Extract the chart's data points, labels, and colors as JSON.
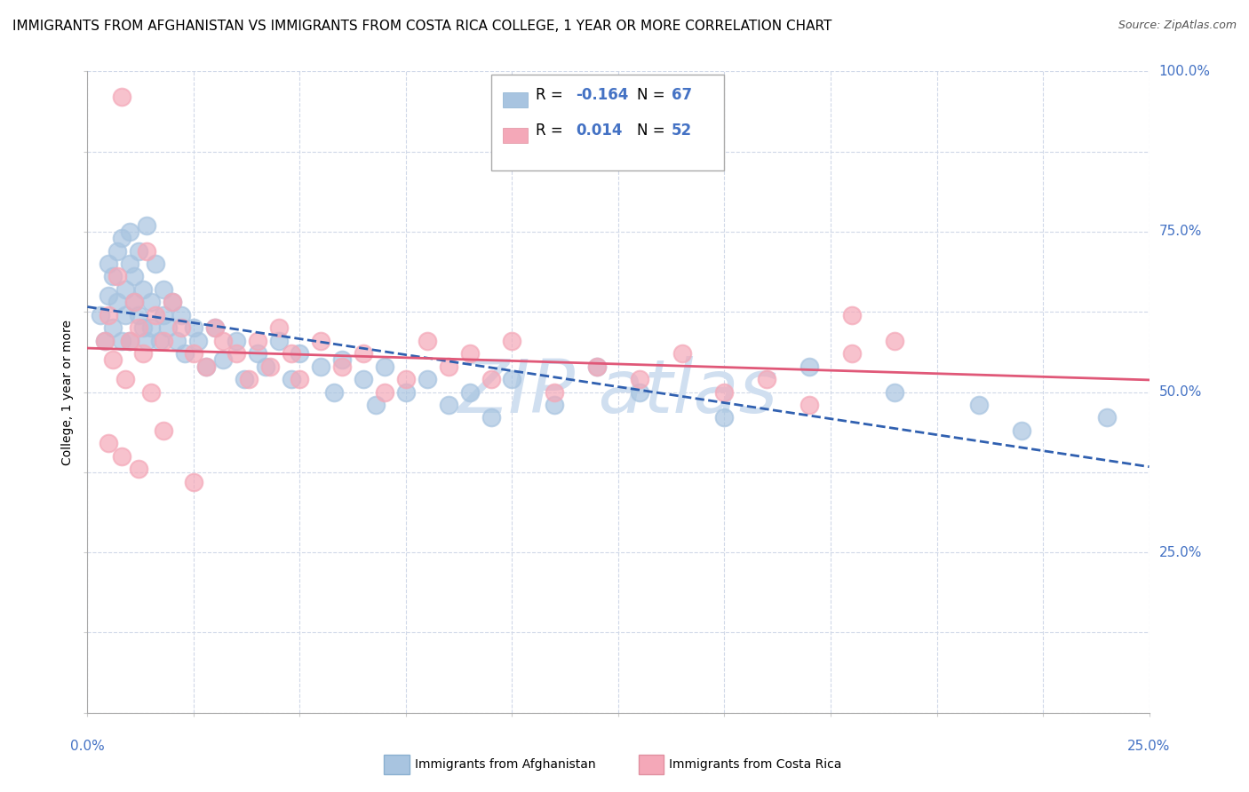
{
  "title": "IMMIGRANTS FROM AFGHANISTAN VS IMMIGRANTS FROM COSTA RICA COLLEGE, 1 YEAR OR MORE CORRELATION CHART",
  "source": "Source: ZipAtlas.com",
  "ylabel": "College, 1 year or more",
  "xlim": [
    0.0,
    0.25
  ],
  "ylim": [
    0.0,
    1.0
  ],
  "afghanistan_color": "#a8c4e0",
  "costa_rica_color": "#f4a8b8",
  "afghanistan_line_color": "#3060b0",
  "costa_rica_line_color": "#e05878",
  "afghanistan_R": -0.164,
  "afghanistan_N": 67,
  "costa_rica_R": 0.014,
  "costa_rica_N": 52,
  "legend_color": "#4472c4",
  "background_color": "#ffffff",
  "grid_color": "#d0d8e8",
  "tick_color": "#4472c4",
  "watermark_color": "#d0dff0",
  "title_fontsize": 11,
  "tick_fontsize": 11,
  "ylabel_fontsize": 10,
  "legend_fontsize": 12,
  "afg_x": [
    0.003,
    0.004,
    0.005,
    0.005,
    0.006,
    0.006,
    0.007,
    0.007,
    0.008,
    0.008,
    0.009,
    0.009,
    0.01,
    0.01,
    0.01,
    0.011,
    0.011,
    0.012,
    0.012,
    0.013,
    0.013,
    0.014,
    0.014,
    0.015,
    0.015,
    0.016,
    0.017,
    0.018,
    0.018,
    0.019,
    0.02,
    0.021,
    0.022,
    0.023,
    0.025,
    0.026,
    0.028,
    0.03,
    0.032,
    0.035,
    0.037,
    0.04,
    0.042,
    0.045,
    0.048,
    0.05,
    0.055,
    0.058,
    0.06,
    0.065,
    0.068,
    0.07,
    0.075,
    0.08,
    0.085,
    0.09,
    0.095,
    0.1,
    0.11,
    0.12,
    0.13,
    0.15,
    0.17,
    0.19,
    0.21,
    0.22,
    0.24
  ],
  "afg_y": [
    0.62,
    0.58,
    0.65,
    0.7,
    0.6,
    0.68,
    0.72,
    0.64,
    0.58,
    0.74,
    0.66,
    0.62,
    0.7,
    0.58,
    0.75,
    0.64,
    0.68,
    0.62,
    0.72,
    0.6,
    0.66,
    0.58,
    0.76,
    0.64,
    0.6,
    0.7,
    0.58,
    0.62,
    0.66,
    0.6,
    0.64,
    0.58,
    0.62,
    0.56,
    0.6,
    0.58,
    0.54,
    0.6,
    0.55,
    0.58,
    0.52,
    0.56,
    0.54,
    0.58,
    0.52,
    0.56,
    0.54,
    0.5,
    0.55,
    0.52,
    0.48,
    0.54,
    0.5,
    0.52,
    0.48,
    0.5,
    0.46,
    0.52,
    0.48,
    0.54,
    0.5,
    0.46,
    0.54,
    0.5,
    0.48,
    0.44,
    0.46
  ],
  "cr_x": [
    0.004,
    0.005,
    0.006,
    0.007,
    0.008,
    0.009,
    0.01,
    0.011,
    0.012,
    0.013,
    0.014,
    0.015,
    0.016,
    0.018,
    0.02,
    0.022,
    0.025,
    0.028,
    0.03,
    0.032,
    0.035,
    0.038,
    0.04,
    0.043,
    0.045,
    0.048,
    0.05,
    0.055,
    0.06,
    0.065,
    0.07,
    0.075,
    0.08,
    0.085,
    0.09,
    0.095,
    0.1,
    0.11,
    0.12,
    0.13,
    0.14,
    0.15,
    0.16,
    0.17,
    0.18,
    0.005,
    0.008,
    0.012,
    0.018,
    0.025,
    0.18,
    0.19
  ],
  "cr_y": [
    0.58,
    0.62,
    0.55,
    0.68,
    0.96,
    0.52,
    0.58,
    0.64,
    0.6,
    0.56,
    0.72,
    0.5,
    0.62,
    0.58,
    0.64,
    0.6,
    0.56,
    0.54,
    0.6,
    0.58,
    0.56,
    0.52,
    0.58,
    0.54,
    0.6,
    0.56,
    0.52,
    0.58,
    0.54,
    0.56,
    0.5,
    0.52,
    0.58,
    0.54,
    0.56,
    0.52,
    0.58,
    0.5,
    0.54,
    0.52,
    0.56,
    0.5,
    0.52,
    0.48,
    0.56,
    0.42,
    0.4,
    0.38,
    0.44,
    0.36,
    0.62,
    0.58
  ]
}
